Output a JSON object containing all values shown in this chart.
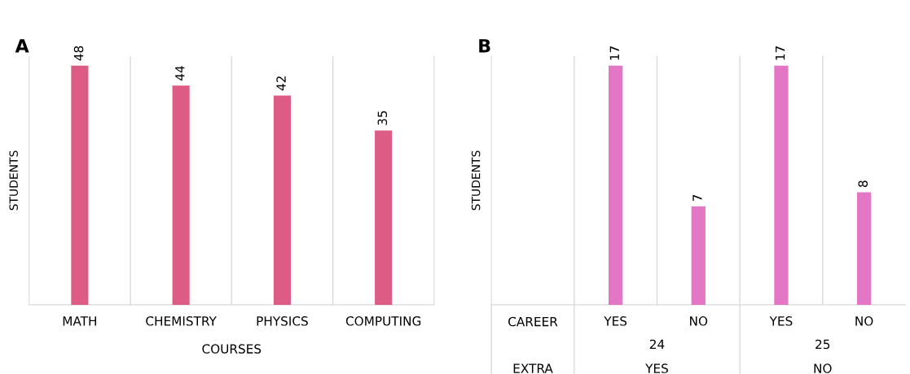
{
  "chart_data": [
    {
      "type": "bar",
      "title": "A",
      "xlabel": "COURSES",
      "ylabel": "STUDENTS",
      "categories": [
        "MATH",
        "CHEMISTRY",
        "PHYSICS",
        "COMPUTING"
      ],
      "values": [
        48,
        44,
        42,
        35
      ],
      "color": "#dd5c85",
      "data_labels": true
    },
    {
      "type": "bar",
      "title": "B",
      "ylabel": "STUDENTS",
      "categories": [
        "YES",
        "NO",
        "YES",
        "NO"
      ],
      "values": [
        17,
        7,
        17,
        8
      ],
      "color": "#e377c6",
      "data_labels": true,
      "annotations": [
        "CAREER",
        "EXTRA",
        "24",
        "25",
        "YES",
        "NO"
      ]
    }
  ]
}
